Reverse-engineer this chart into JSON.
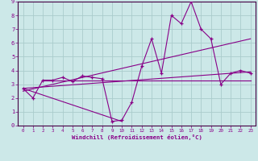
{
  "background_color": "#cce8e8",
  "grid_color": "#aacccc",
  "line_color": "#880088",
  "xlabel": "Windchill (Refroidissement éolien,°C)",
  "xlim": [
    -0.5,
    23.5
  ],
  "ylim": [
    0,
    9
  ],
  "xticks": [
    0,
    1,
    2,
    3,
    4,
    5,
    6,
    7,
    8,
    9,
    10,
    11,
    12,
    13,
    14,
    15,
    16,
    17,
    18,
    19,
    20,
    21,
    22,
    23
  ],
  "yticks": [
    0,
    1,
    2,
    3,
    4,
    5,
    6,
    7,
    8,
    9
  ],
  "series": [
    {
      "x": [
        0,
        1,
        2,
        3,
        4,
        5,
        6,
        7,
        8,
        9,
        10,
        11,
        12,
        13,
        14,
        15,
        16,
        17,
        18,
        19,
        20,
        21,
        22,
        23
      ],
      "y": [
        2.7,
        2.0,
        3.3,
        3.3,
        3.5,
        3.2,
        3.6,
        3.5,
        3.4,
        0.3,
        0.4,
        1.7,
        4.3,
        6.3,
        3.8,
        8.0,
        7.4,
        9.0,
        7.0,
        6.3,
        3.0,
        3.8,
        4.0,
        3.8
      ]
    },
    {
      "x": [
        0,
        10
      ],
      "y": [
        2.7,
        0.3
      ]
    },
    {
      "x": [
        2,
        19,
        23
      ],
      "y": [
        3.3,
        3.3,
        3.3
      ]
    },
    {
      "x": [
        0,
        23
      ],
      "y": [
        2.7,
        3.9
      ]
    },
    {
      "x": [
        0,
        23
      ],
      "y": [
        2.5,
        6.3
      ]
    }
  ]
}
